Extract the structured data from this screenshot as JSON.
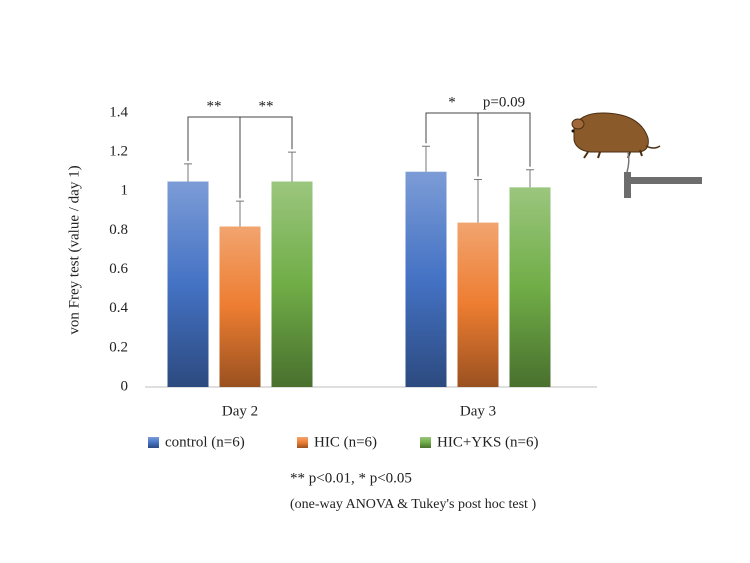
{
  "chart_data": {
    "type": "bar",
    "y_label": "von Frey test (value / day 1)",
    "categories": [
      "Day 2",
      "Day 3"
    ],
    "series": [
      {
        "name": "control (n=6)",
        "color": "#4472c4",
        "values": [
          1.05,
          1.1
        ],
        "errors": [
          0.09,
          0.13
        ]
      },
      {
        "name": "HIC (n=6)",
        "color": "#ed7d31",
        "values": [
          0.82,
          0.84
        ],
        "errors": [
          0.13,
          0.22
        ]
      },
      {
        "name": "HIC+YKS (n=6)",
        "color": "#70ad47",
        "values": [
          1.05,
          1.02
        ],
        "errors": [
          0.15,
          0.09
        ]
      }
    ],
    "ylim": [
      0,
      1.4
    ],
    "yticks": [
      0,
      0.2,
      0.4,
      0.6,
      0.8,
      1,
      1.2,
      1.4
    ],
    "annotations": [
      "**",
      "**",
      "*",
      "p=0.09"
    ],
    "footnotes": [
      "** p<0.01, * p<0.05",
      "(one-way ANOVA & Tukey's post hoc test )"
    ]
  }
}
